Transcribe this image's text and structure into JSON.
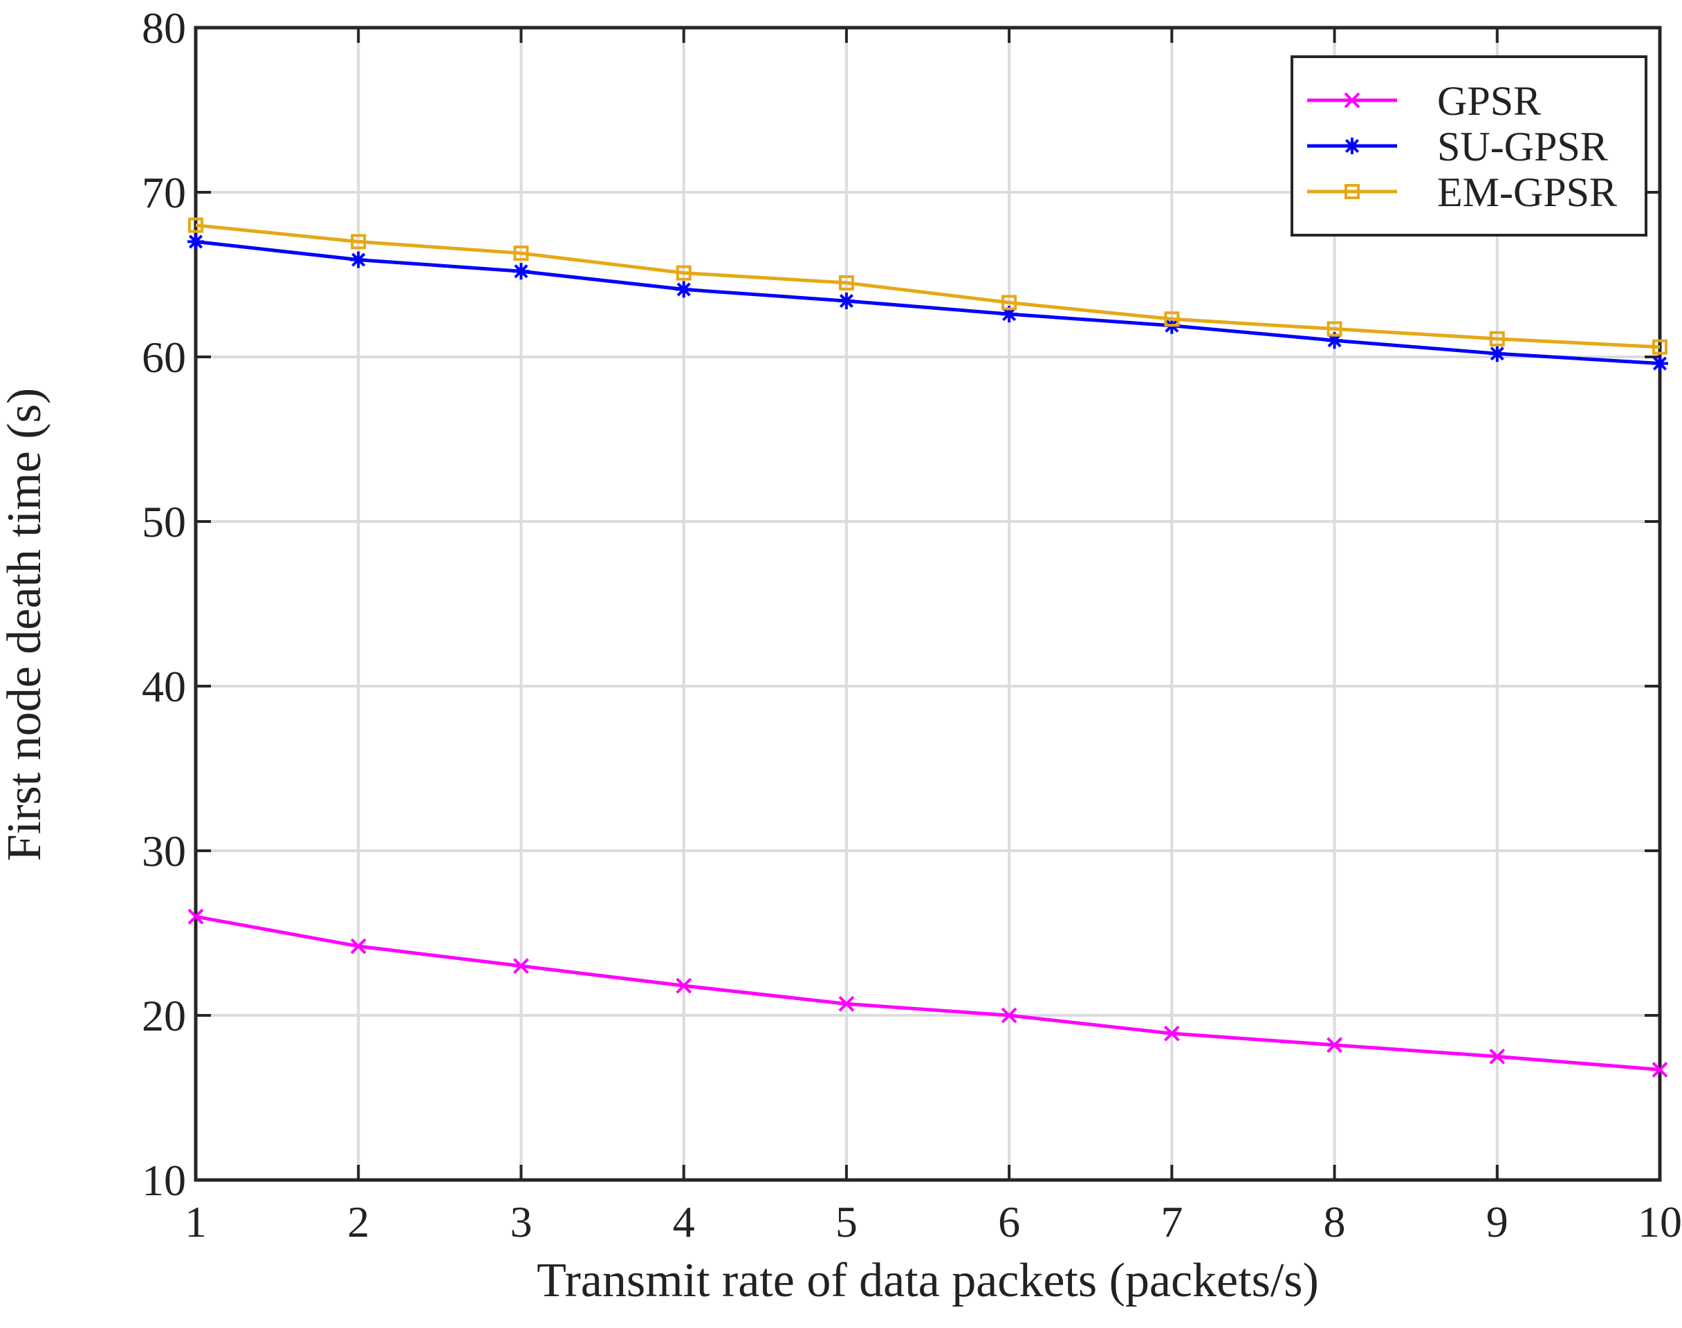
{
  "chart_data": {
    "type": "line",
    "title": "",
    "xlabel": "Transmit rate of data packets (packets/s)",
    "ylabel": "First node death time (s)",
    "x": [
      1,
      2,
      3,
      4,
      5,
      6,
      7,
      8,
      9,
      10
    ],
    "xlim": [
      1,
      10
    ],
    "ylim": [
      10,
      80
    ],
    "xticks": [
      1,
      2,
      3,
      4,
      5,
      6,
      7,
      8,
      9,
      10
    ],
    "yticks": [
      10,
      20,
      30,
      40,
      50,
      60,
      70,
      80
    ],
    "grid": true,
    "legend_position": "top-right",
    "series": [
      {
        "name": "GPSR",
        "color": "#ff00ff",
        "marker": "x",
        "values": [
          26.0,
          24.2,
          23.0,
          21.8,
          20.7,
          20.0,
          18.9,
          18.2,
          17.5,
          16.7
        ]
      },
      {
        "name": "SU-GPSR",
        "color": "#0000ff",
        "marker": "asterisk",
        "values": [
          67.0,
          65.9,
          65.2,
          64.1,
          63.4,
          62.6,
          61.9,
          61.0,
          60.2,
          59.6
        ]
      },
      {
        "name": "EM-GPSR",
        "color": "#e6a817",
        "marker": "square",
        "values": [
          68.0,
          67.0,
          66.3,
          65.1,
          64.5,
          63.3,
          62.3,
          61.7,
          61.1,
          60.6
        ]
      }
    ]
  }
}
